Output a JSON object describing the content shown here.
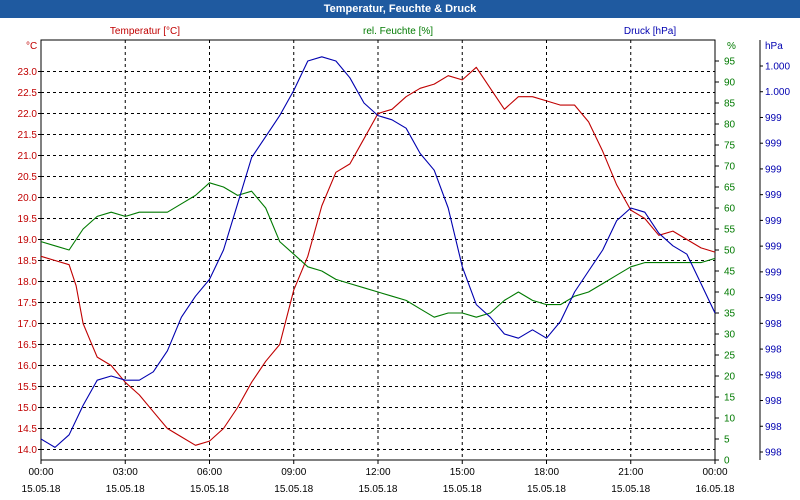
{
  "window": {
    "title": "Temperatur, Feuchte & Druck"
  },
  "colors": {
    "temperature": "#c00000",
    "humidity": "#007a00",
    "pressure": "#0000b0",
    "grid": "#000000",
    "titlebar": "#1f5aa0"
  },
  "chart_data": {
    "type": "line",
    "title": "Temperatur, Feuchte & Druck",
    "grid": true,
    "x": {
      "range": [
        0,
        24
      ],
      "ticks": [
        0,
        3,
        6,
        9,
        12,
        15,
        18,
        21,
        24
      ],
      "time_labels": [
        "00:00",
        "03:00",
        "06:00",
        "09:00",
        "12:00",
        "15:00",
        "18:00",
        "21:00",
        "00:00"
      ],
      "date_labels": [
        "15.05.18",
        "15.05.18",
        "15.05.18",
        "15.05.18",
        "15.05.18",
        "15.05.18",
        "15.05.18",
        "15.05.18",
        "16.05.18"
      ]
    },
    "axes": {
      "temperature": {
        "label": "Temperatur [°C]",
        "unit": "°C",
        "range": [
          13.75,
          23.75
        ],
        "tick_labels": [
          "14.0",
          "14.5",
          "15.0",
          "15.5",
          "16.0",
          "16.5",
          "17.0",
          "17.5",
          "18.0",
          "18.5",
          "19.0",
          "19.5",
          "20.0",
          "20.5",
          "21.0",
          "21.5",
          "22.0",
          "22.5",
          "23.0"
        ]
      },
      "humidity": {
        "label": "rel. Feuchte [%]",
        "unit": "%",
        "range": [
          0,
          100
        ],
        "tick_labels": [
          "0",
          "5",
          "10",
          "15",
          "20",
          "25",
          "30",
          "35",
          "40",
          "45",
          "50",
          "55",
          "60",
          "65",
          "70",
          "75",
          "80",
          "85",
          "90",
          "95"
        ]
      },
      "pressure": {
        "label": "Druck [hPa]",
        "unit": "hPa",
        "range": [
          0,
          100
        ],
        "tick_labels": [
          "998",
          "998",
          "998",
          "998",
          "998",
          "998",
          "999",
          "999",
          "999",
          "999",
          "999",
          "999",
          "999",
          "999",
          "1.000",
          "1.000"
        ]
      }
    },
    "series": [
      {
        "name": "Temperatur [°C]",
        "axis": "temperature",
        "points": [
          [
            0,
            18.6
          ],
          [
            0.5,
            18.5
          ],
          [
            1,
            18.4
          ],
          [
            1.25,
            17.9
          ],
          [
            1.5,
            17.0
          ],
          [
            1.75,
            16.6
          ],
          [
            2,
            16.2
          ],
          [
            2.5,
            16.0
          ],
          [
            3,
            15.6
          ],
          [
            3.5,
            15.3
          ],
          [
            4,
            14.9
          ],
          [
            4.5,
            14.5
          ],
          [
            5,
            14.3
          ],
          [
            5.5,
            14.1
          ],
          [
            6,
            14.2
          ],
          [
            6.5,
            14.5
          ],
          [
            7,
            15.0
          ],
          [
            7.5,
            15.6
          ],
          [
            8,
            16.1
          ],
          [
            8.5,
            16.5
          ],
          [
            9,
            17.8
          ],
          [
            9.5,
            18.6
          ],
          [
            10,
            19.8
          ],
          [
            10.5,
            20.6
          ],
          [
            11,
            20.8
          ],
          [
            11.5,
            21.4
          ],
          [
            12,
            22.0
          ],
          [
            12.5,
            22.1
          ],
          [
            13,
            22.4
          ],
          [
            13.5,
            22.6
          ],
          [
            14,
            22.7
          ],
          [
            14.5,
            22.9
          ],
          [
            15,
            22.8
          ],
          [
            15.5,
            23.1
          ],
          [
            16,
            22.6
          ],
          [
            16.5,
            22.1
          ],
          [
            17,
            22.4
          ],
          [
            17.5,
            22.4
          ],
          [
            18,
            22.3
          ],
          [
            18.5,
            22.2
          ],
          [
            19,
            22.2
          ],
          [
            19.5,
            21.8
          ],
          [
            20,
            21.1
          ],
          [
            20.5,
            20.3
          ],
          [
            21,
            19.7
          ],
          [
            21.5,
            19.5
          ],
          [
            22,
            19.1
          ],
          [
            22.5,
            19.2
          ],
          [
            23,
            19.0
          ],
          [
            23.5,
            18.8
          ],
          [
            24,
            18.7
          ]
        ]
      },
      {
        "name": "rel. Feuchte [%]",
        "axis": "humidity",
        "points": [
          [
            0,
            52
          ],
          [
            0.5,
            51
          ],
          [
            1,
            50
          ],
          [
            1.5,
            55
          ],
          [
            2,
            58
          ],
          [
            2.5,
            59
          ],
          [
            3,
            58
          ],
          [
            3.5,
            59
          ],
          [
            4,
            59
          ],
          [
            4.5,
            59
          ],
          [
            5,
            61
          ],
          [
            5.5,
            63
          ],
          [
            6,
            66
          ],
          [
            6.5,
            65
          ],
          [
            7,
            63
          ],
          [
            7.5,
            64
          ],
          [
            8,
            60
          ],
          [
            8.5,
            52
          ],
          [
            9,
            49
          ],
          [
            9.5,
            46
          ],
          [
            10,
            45
          ],
          [
            10.5,
            43
          ],
          [
            11,
            42
          ],
          [
            11.5,
            41
          ],
          [
            12,
            40
          ],
          [
            12.5,
            39
          ],
          [
            13,
            38
          ],
          [
            13.5,
            36
          ],
          [
            14,
            34
          ],
          [
            14.5,
            35
          ],
          [
            15,
            35
          ],
          [
            15.5,
            34
          ],
          [
            16,
            35
          ],
          [
            16.5,
            38
          ],
          [
            17,
            40
          ],
          [
            17.5,
            38
          ],
          [
            18,
            37
          ],
          [
            18.5,
            37
          ],
          [
            19,
            39
          ],
          [
            19.5,
            40
          ],
          [
            20,
            42
          ],
          [
            20.5,
            44
          ],
          [
            21,
            46
          ],
          [
            21.5,
            47
          ],
          [
            22,
            47
          ],
          [
            22.5,
            47
          ],
          [
            23,
            47
          ],
          [
            23.5,
            47
          ],
          [
            24,
            48
          ]
        ]
      },
      {
        "name": "Druck [hPa]",
        "axis": "pressure",
        "points": [
          [
            0,
            5
          ],
          [
            0.25,
            4
          ],
          [
            0.5,
            3
          ],
          [
            1,
            6
          ],
          [
            1.5,
            13
          ],
          [
            2,
            19
          ],
          [
            2.5,
            20
          ],
          [
            3,
            19
          ],
          [
            3.5,
            19
          ],
          [
            4,
            21
          ],
          [
            4.5,
            26
          ],
          [
            5,
            34
          ],
          [
            5.5,
            39
          ],
          [
            6,
            43
          ],
          [
            6.5,
            50
          ],
          [
            7,
            61
          ],
          [
            7.5,
            72
          ],
          [
            8,
            77
          ],
          [
            8.5,
            82
          ],
          [
            9,
            88
          ],
          [
            9.5,
            95
          ],
          [
            10,
            96
          ],
          [
            10.5,
            95
          ],
          [
            11,
            91
          ],
          [
            11.5,
            85
          ],
          [
            12,
            82
          ],
          [
            12.5,
            81
          ],
          [
            13,
            79
          ],
          [
            13.5,
            73
          ],
          [
            14,
            69
          ],
          [
            14.5,
            60
          ],
          [
            15,
            46
          ],
          [
            15.5,
            37
          ],
          [
            16,
            34
          ],
          [
            16.5,
            30
          ],
          [
            17,
            29
          ],
          [
            17.5,
            31
          ],
          [
            18,
            29
          ],
          [
            18.5,
            33
          ],
          [
            19,
            40
          ],
          [
            19.5,
            45
          ],
          [
            20,
            50
          ],
          [
            20.5,
            57
          ],
          [
            21,
            60
          ],
          [
            21.5,
            59
          ],
          [
            22,
            54
          ],
          [
            22.5,
            51
          ],
          [
            23,
            49
          ],
          [
            23.5,
            42
          ],
          [
            24,
            35
          ]
        ]
      }
    ]
  }
}
